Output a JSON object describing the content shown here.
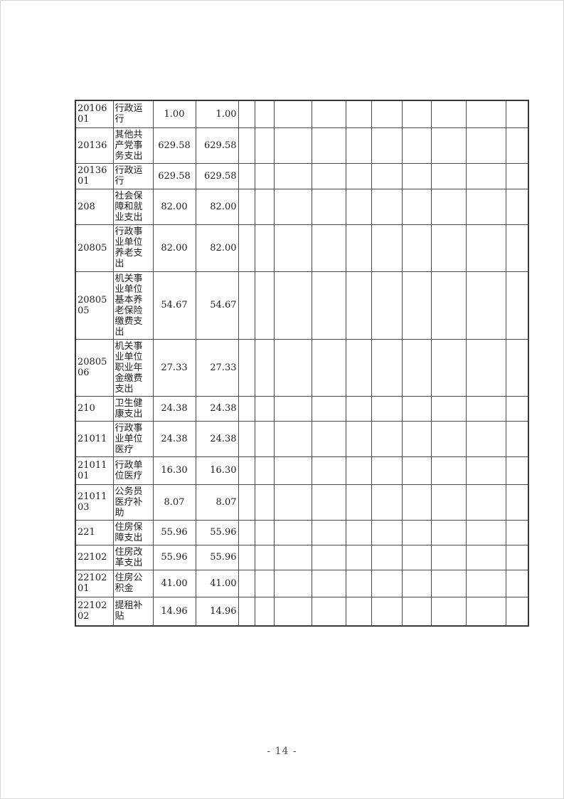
{
  "table": {
    "empty_columns": 10,
    "rows": [
      {
        "code": "2010601",
        "name": "行政运行",
        "total": "1.00",
        "amount": "1.00"
      },
      {
        "code": "20136",
        "name": "其他共产党事务支出",
        "total": "629.58",
        "amount": "629.58"
      },
      {
        "code": "2013601",
        "name": "行政运行",
        "total": "629.58",
        "amount": "629.58"
      },
      {
        "code": "208",
        "name": "社会保障和就业支出",
        "total": "82.00",
        "amount": "82.00"
      },
      {
        "code": "20805",
        "name": "行政事业单位养老支出",
        "total": "82.00",
        "amount": "82.00"
      },
      {
        "code": "2080505",
        "name": "机关事业单位基本养老保险缴费支出",
        "total": "54.67",
        "amount": "54.67"
      },
      {
        "code": "2080506",
        "name": "机关事业单位职业年金缴费支出",
        "total": "27.33",
        "amount": "27.33"
      },
      {
        "code": "210",
        "name": "卫生健康支出",
        "total": "24.38",
        "amount": "24.38"
      },
      {
        "code": "21011",
        "name": "行政事业单位医疗",
        "total": "24.38",
        "amount": "24.38"
      },
      {
        "code": "2101101",
        "name": "行政单位医疗",
        "total": "16.30",
        "amount": "16.30"
      },
      {
        "code": "2101103",
        "name": "公务员医疗补助",
        "total": "8.07",
        "amount": "8.07"
      },
      {
        "code": "221",
        "name": "住房保障支出",
        "total": "55.96",
        "amount": "55.96"
      },
      {
        "code": "22102",
        "name": "住房改革支出",
        "total": "55.96",
        "amount": "55.96"
      },
      {
        "code": "2210201",
        "name": "住房公积金",
        "total": "41.00",
        "amount": "41.00"
      },
      {
        "code": "2210202",
        "name": "提租补贴",
        "total": "14.96",
        "amount": "14.96"
      }
    ]
  },
  "footer": {
    "page_number_text": "- 14 -"
  }
}
